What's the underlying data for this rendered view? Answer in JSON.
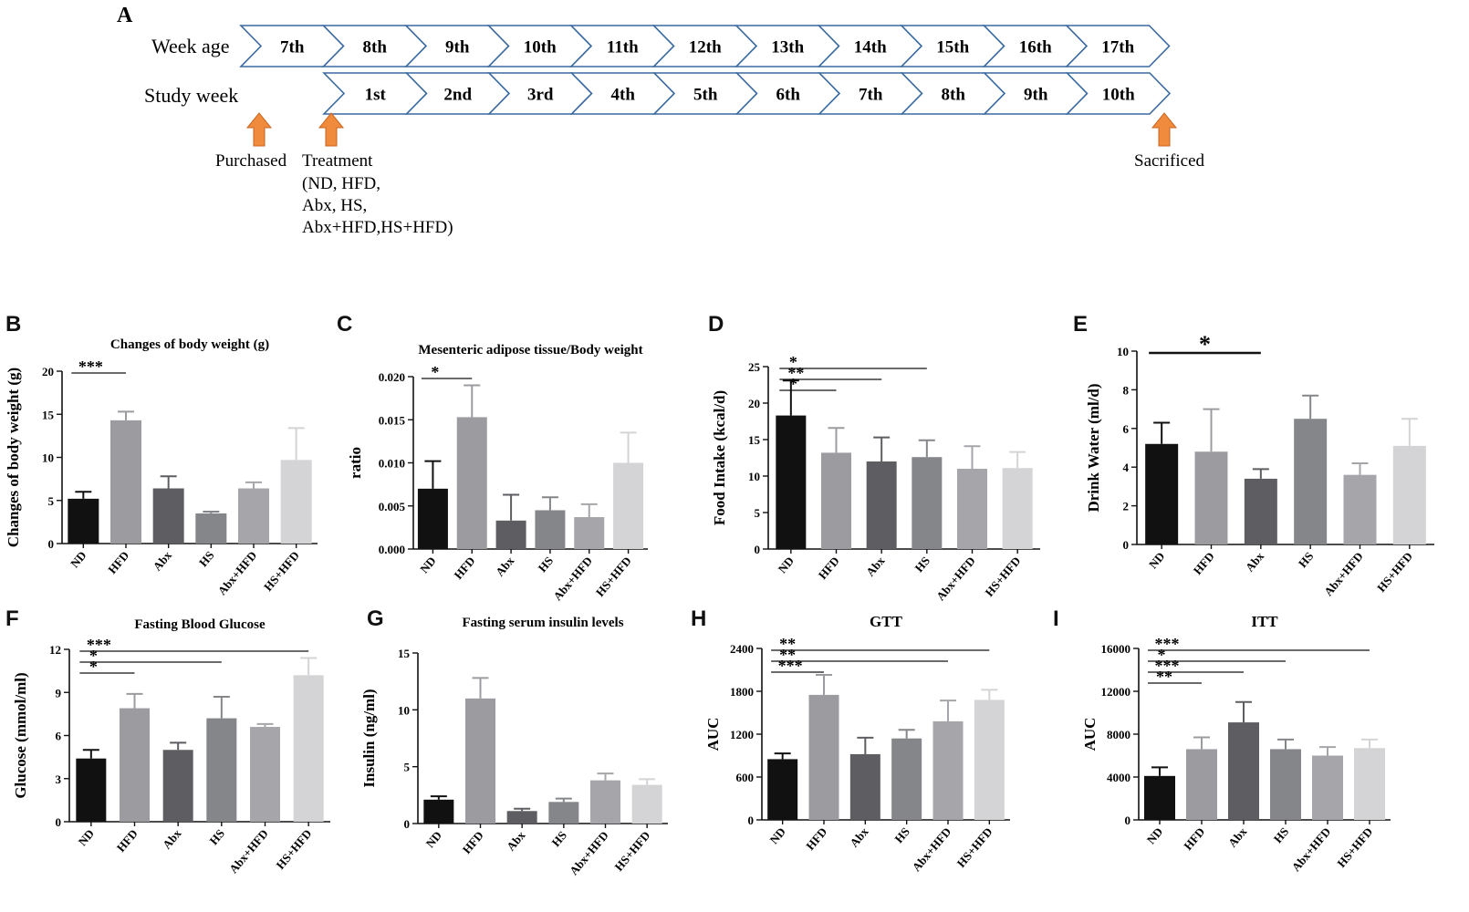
{
  "timeline": {
    "label": "A",
    "row1_label": "Week age",
    "row2_label": "Study week",
    "week_age": [
      "7th",
      "8th",
      "9th",
      "10th",
      "11th",
      "12th",
      "13th",
      "14th",
      "15th",
      "16th",
      "17th"
    ],
    "study_week": [
      "1st",
      "2nd",
      "3rd",
      "4th",
      "5th",
      "6th",
      "7th",
      "8th",
      "9th",
      "10th"
    ],
    "purchased": "Purchased",
    "treatment": [
      "Treatment",
      "(ND, HFD,",
      "Abx, HS,",
      "Abx+HFD,HS+HFD)"
    ],
    "sacrificed": "Sacrificed",
    "arrow_color": "#f08a3c",
    "chevron_color": "#3a6aa0"
  },
  "colors": {
    "ND": "#111111",
    "HFD": "#9c9ca0",
    "Abx": "#5e5e62",
    "HS": "#848689",
    "Abx+HFD": "#a6a6aa",
    "HS+HFD": "#d4d4d6"
  },
  "chart_data": [
    {
      "id": "B",
      "type": "bar",
      "title": "Changes of body weight (g)",
      "ylabel": "Changes of body weight (g)",
      "xlabel": "",
      "categories": [
        "ND",
        "HFD",
        "Abx",
        "HS",
        "Abx+HFD",
        "HS+HFD"
      ],
      "values": [
        5.2,
        14.3,
        6.4,
        3.5,
        6.4,
        9.7
      ],
      "errors": [
        0.8,
        1.0,
        1.4,
        0.2,
        0.7,
        3.7
      ],
      "ylim": [
        0,
        20
      ],
      "yticks": [
        "0",
        "5",
        "10",
        "15",
        "20"
      ],
      "sig": [
        {
          "from": 0,
          "to": 1,
          "label": "***"
        }
      ]
    },
    {
      "id": "C",
      "type": "bar",
      "title": "Mesenteric adipose tissue/Body weight",
      "ylabel": "ratio",
      "xlabel": "",
      "categories": [
        "ND",
        "HFD",
        "Abx",
        "HS",
        "Abx+HFD",
        "HS+HFD"
      ],
      "values": [
        0.007,
        0.0153,
        0.0033,
        0.0045,
        0.0037,
        0.01
      ],
      "errors": [
        0.0032,
        0.0037,
        0.003,
        0.0015,
        0.0015,
        0.0035
      ],
      "ylim": [
        0,
        0.02
      ],
      "yticks": [
        "0.000",
        "0.005",
        "0.010",
        "0.015",
        "0.020"
      ],
      "sig": [
        {
          "from": 0,
          "to": 1,
          "label": "*"
        }
      ]
    },
    {
      "id": "D",
      "type": "bar",
      "title": "",
      "ylabel": "Food Intake (kcal/d)",
      "xlabel": "",
      "categories": [
        "ND",
        "HFD",
        "Abx",
        "HS",
        "Abx+HFD",
        "HS+HFD"
      ],
      "values": [
        18.3,
        13.2,
        12.0,
        12.6,
        11.0,
        11.1
      ],
      "errors": [
        4.8,
        3.4,
        3.3,
        2.3,
        3.1,
        2.2
      ],
      "ylim": [
        0,
        25
      ],
      "yticks": [
        "0",
        "5",
        "10",
        "15",
        "20",
        "25"
      ],
      "sig": [
        {
          "from": 0,
          "to": 1,
          "label": "*"
        },
        {
          "from": 0,
          "to": 2,
          "label": "**"
        },
        {
          "from": 0,
          "to": 3,
          "label": "*"
        }
      ]
    },
    {
      "id": "E",
      "type": "bar",
      "title": "",
      "ylabel": "Drink Water (ml/d)",
      "xlabel": "",
      "categories": [
        "ND",
        "HFD",
        "Abx",
        "HS",
        "Abx+HFD",
        "HS+HFD"
      ],
      "values": [
        5.2,
        4.8,
        3.4,
        6.5,
        3.6,
        5.1
      ],
      "errors": [
        1.1,
        2.2,
        0.5,
        1.2,
        0.6,
        1.4
      ],
      "ylim": [
        0,
        10
      ],
      "yticks": [
        "0",
        "2",
        "4",
        "6",
        "8",
        "10"
      ],
      "sig": [
        {
          "from": 0,
          "to": 2,
          "label": "*"
        }
      ]
    },
    {
      "id": "F",
      "type": "bar",
      "title": "Fasting Blood Glucose",
      "ylabel": "Glucose (mmol/ml)",
      "xlabel": "",
      "categories": [
        "ND",
        "HFD",
        "Abx",
        "HS",
        "Abx+HFD",
        "HS+HFD"
      ],
      "values": [
        4.4,
        7.9,
        5.0,
        7.2,
        6.6,
        10.2
      ],
      "errors": [
        0.6,
        1.0,
        0.5,
        1.5,
        0.2,
        1.2
      ],
      "ylim": [
        0,
        12
      ],
      "yticks": [
        "0",
        "3",
        "6",
        "9",
        "12"
      ],
      "sig": [
        {
          "from": 0,
          "to": 1,
          "label": "*"
        },
        {
          "from": 0,
          "to": 3,
          "label": "*"
        },
        {
          "from": 0,
          "to": 5,
          "label": "***"
        }
      ]
    },
    {
      "id": "G",
      "type": "bar",
      "title": "Fasting serum insulin levels",
      "ylabel": "Insulin (ng/ml)",
      "xlabel": "",
      "categories": [
        "ND",
        "HFD",
        "Abx",
        "HS",
        "Abx+HFD",
        "HS+HFD"
      ],
      "values": [
        2.1,
        11.0,
        1.1,
        1.9,
        3.8,
        3.4
      ],
      "errors": [
        0.3,
        1.8,
        0.2,
        0.3,
        0.6,
        0.5
      ],
      "ylim": [
        0,
        15
      ],
      "yticks": [
        "0",
        "5",
        "10",
        "15"
      ],
      "sig": []
    },
    {
      "id": "H",
      "type": "bar",
      "title": "GTT",
      "ylabel": "AUC",
      "xlabel": "",
      "categories": [
        "ND",
        "HFD",
        "Abx",
        "HS",
        "Abx+HFD",
        "HS+HFD"
      ],
      "values": [
        850,
        1750,
        920,
        1140,
        1380,
        1680
      ],
      "errors": [
        80,
        280,
        230,
        120,
        290,
        140
      ],
      "ylim": [
        0,
        2400
      ],
      "yticks": [
        "0",
        "600",
        "1200",
        "1800",
        "2400"
      ],
      "sig": [
        {
          "from": 0,
          "to": 1,
          "label": "***"
        },
        {
          "from": 0,
          "to": 4,
          "label": "**"
        },
        {
          "from": 0,
          "to": 5,
          "label": "**"
        }
      ]
    },
    {
      "id": "I",
      "type": "bar",
      "title": "ITT",
      "ylabel": "AUC",
      "xlabel": "",
      "categories": [
        "ND",
        "HFD",
        "Abx",
        "HS",
        "Abx+HFD",
        "HS+HFD"
      ],
      "values": [
        4100,
        6600,
        9100,
        6600,
        6000,
        6700
      ],
      "errors": [
        800,
        1100,
        1900,
        900,
        800,
        800
      ],
      "ylim": [
        0,
        16000
      ],
      "yticks": [
        "0",
        "4000",
        "8000",
        "12000",
        "16000"
      ],
      "sig": [
        {
          "from": 0,
          "to": 1,
          "label": "**"
        },
        {
          "from": 0,
          "to": 2,
          "label": "***"
        },
        {
          "from": 0,
          "to": 3,
          "label": "*"
        },
        {
          "from": 0,
          "to": 5,
          "label": "***"
        }
      ]
    }
  ]
}
